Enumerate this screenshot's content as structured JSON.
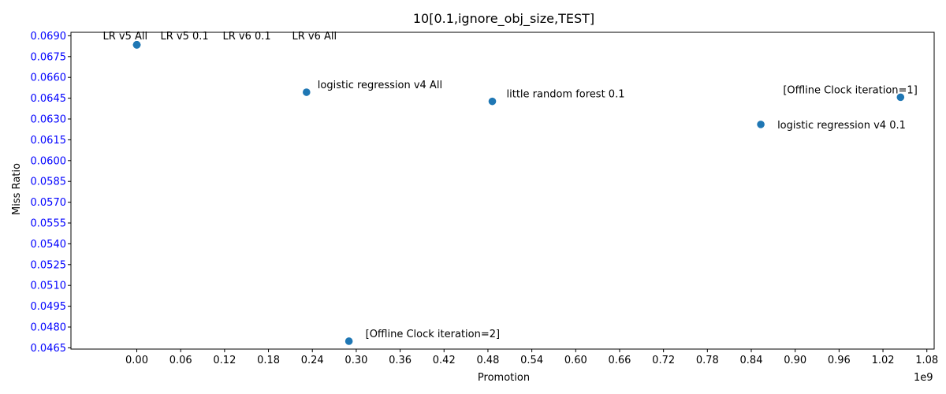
{
  "chart_data": {
    "type": "scatter",
    "title": "10[0.1,ignore_obj_size,TEST]",
    "xlabel": "Promotion",
    "ylabel": "Miss Ratio",
    "x_offset_text": "1e9",
    "xlim": [
      -0.09,
      1.09
    ],
    "ylim": [
      0.04641,
      0.06925
    ],
    "x_ticks": [
      "0.00",
      "0.06",
      "0.12",
      "0.18",
      "0.24",
      "0.30",
      "0.36",
      "0.42",
      "0.48",
      "0.54",
      "0.60",
      "0.66",
      "0.72",
      "0.78",
      "0.84",
      "0.90",
      "0.96",
      "1.02",
      "1.08"
    ],
    "y_ticks": [
      "0.0465",
      "0.0480",
      "0.0495",
      "0.0510",
      "0.0525",
      "0.0540",
      "0.0555",
      "0.0570",
      "0.0585",
      "0.0600",
      "0.0615",
      "0.0630",
      "0.0645",
      "0.0660",
      "0.0675",
      "0.0690"
    ],
    "grid": false,
    "y_tick_color": "#0000ff",
    "marker_color": "#1f77b4",
    "points": [
      {
        "label": "LR v5 All",
        "x": 0.0,
        "y": 0.06835
      },
      {
        "label": "LR v5 0.1",
        "x": 0.0,
        "y": 0.06835
      },
      {
        "label": "LR v6 0.1",
        "x": 0.0,
        "y": 0.06835
      },
      {
        "label": "LR v6 All",
        "x": 0.0,
        "y": 0.06835
      },
      {
        "label": "logistic regression v4 All",
        "x": 0.232,
        "y": 0.06493
      },
      {
        "label": "little random forest 0.1",
        "x": 0.486,
        "y": 0.06427
      },
      {
        "label": "[Offline Clock iteration=1]",
        "x": 1.044,
        "y": 0.06457
      },
      {
        "label": "logistic regression v4 0.1",
        "x": 0.853,
        "y": 0.06261
      },
      {
        "label": "[Offline Clock iteration=2]",
        "x": 0.29,
        "y": 0.04698
      }
    ]
  }
}
